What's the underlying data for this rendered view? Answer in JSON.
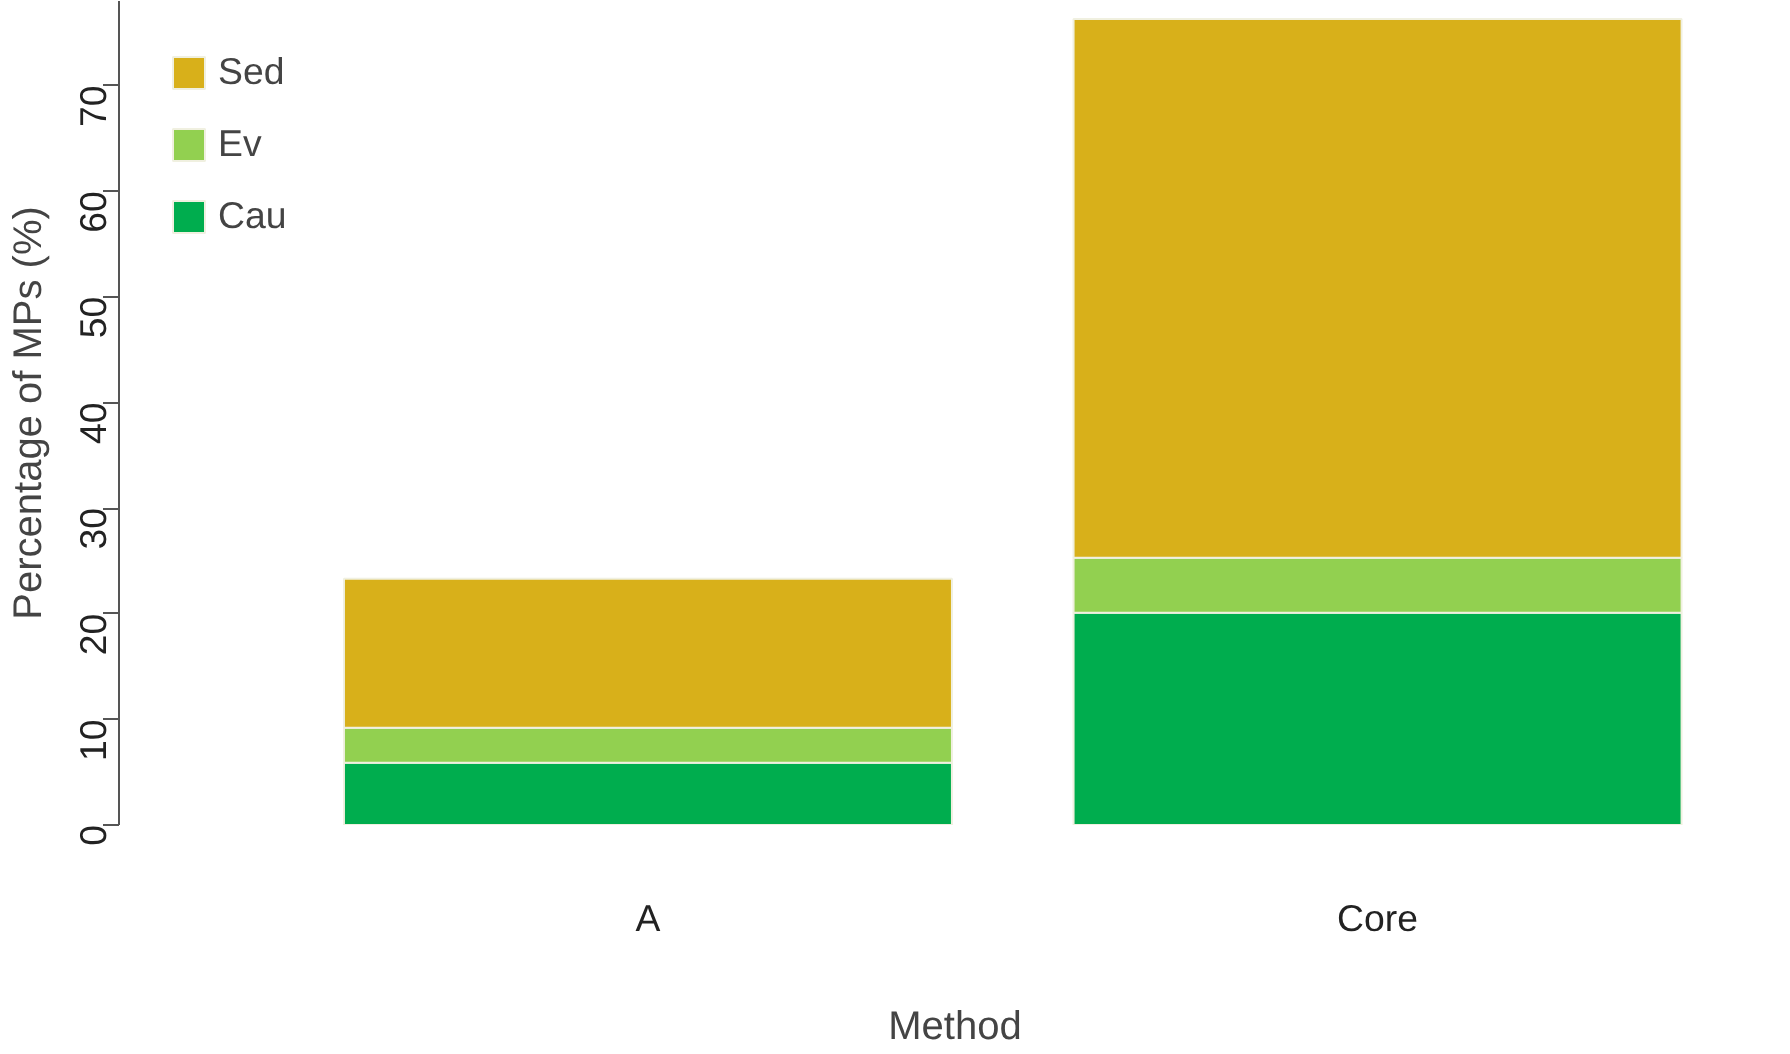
{
  "chart_data": {
    "type": "bar",
    "stacked": true,
    "categories": [
      "A",
      "Core"
    ],
    "xlabel": "Method",
    "ylabel": "Percentage of MPs (%)",
    "series": [
      {
        "name": "Cau",
        "color": "#00ad4e",
        "values": [
          5.9,
          20.1
        ]
      },
      {
        "name": "Ev",
        "color": "#92d050",
        "values": [
          3.3,
          5.2
        ]
      },
      {
        "name": "Sed",
        "color": "#d8b01a",
        "values": [
          14.1,
          51.0
        ]
      }
    ],
    "ylim": [
      0,
      78
    ],
    "yticks": [
      0,
      10,
      20,
      30,
      40,
      50,
      60,
      70
    ],
    "grid": false,
    "legend": "top left"
  }
}
